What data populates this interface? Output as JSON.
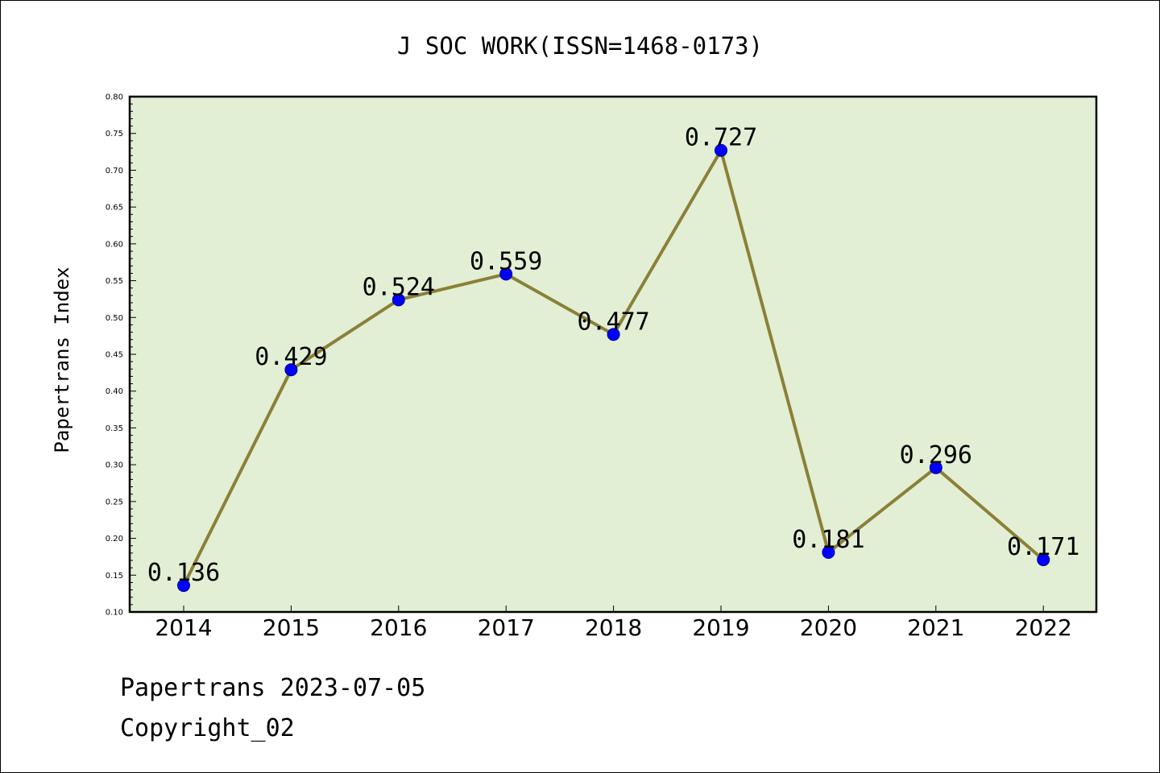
{
  "chart_data": {
    "type": "line",
    "title": "J SOC WORK(ISSN=1468-0173)",
    "xlabel": "",
    "ylabel": "Papertrans Index",
    "categories": [
      "2014",
      "2015",
      "2016",
      "2017",
      "2018",
      "2019",
      "2020",
      "2021",
      "2022"
    ],
    "series": [
      {
        "values": [
          0.136,
          0.429,
          0.524,
          0.559,
          0.477,
          0.727,
          0.181,
          0.296,
          0.171
        ],
        "labels": [
          "0.136",
          "0.429",
          "0.524",
          "0.559",
          "0.477",
          "0.727",
          "0.181",
          "0.296",
          "0.171"
        ]
      }
    ],
    "ylim": [
      0.1,
      0.8
    ],
    "yticks": [
      "0.10",
      "0.15",
      "0.20",
      "0.25",
      "0.30",
      "0.35",
      "0.40",
      "0.45",
      "0.50",
      "0.55",
      "0.60",
      "0.65",
      "0.70",
      "0.75",
      "0.80"
    ],
    "grid": false,
    "legend": "none",
    "colors": {
      "plot_background": "#e2efd4",
      "line": "#8b8038",
      "marker": "#0000ff",
      "axes": "#000000"
    }
  },
  "footer": {
    "line1": "Papertrans 2023-07-05",
    "line2": "Copyright_02"
  }
}
